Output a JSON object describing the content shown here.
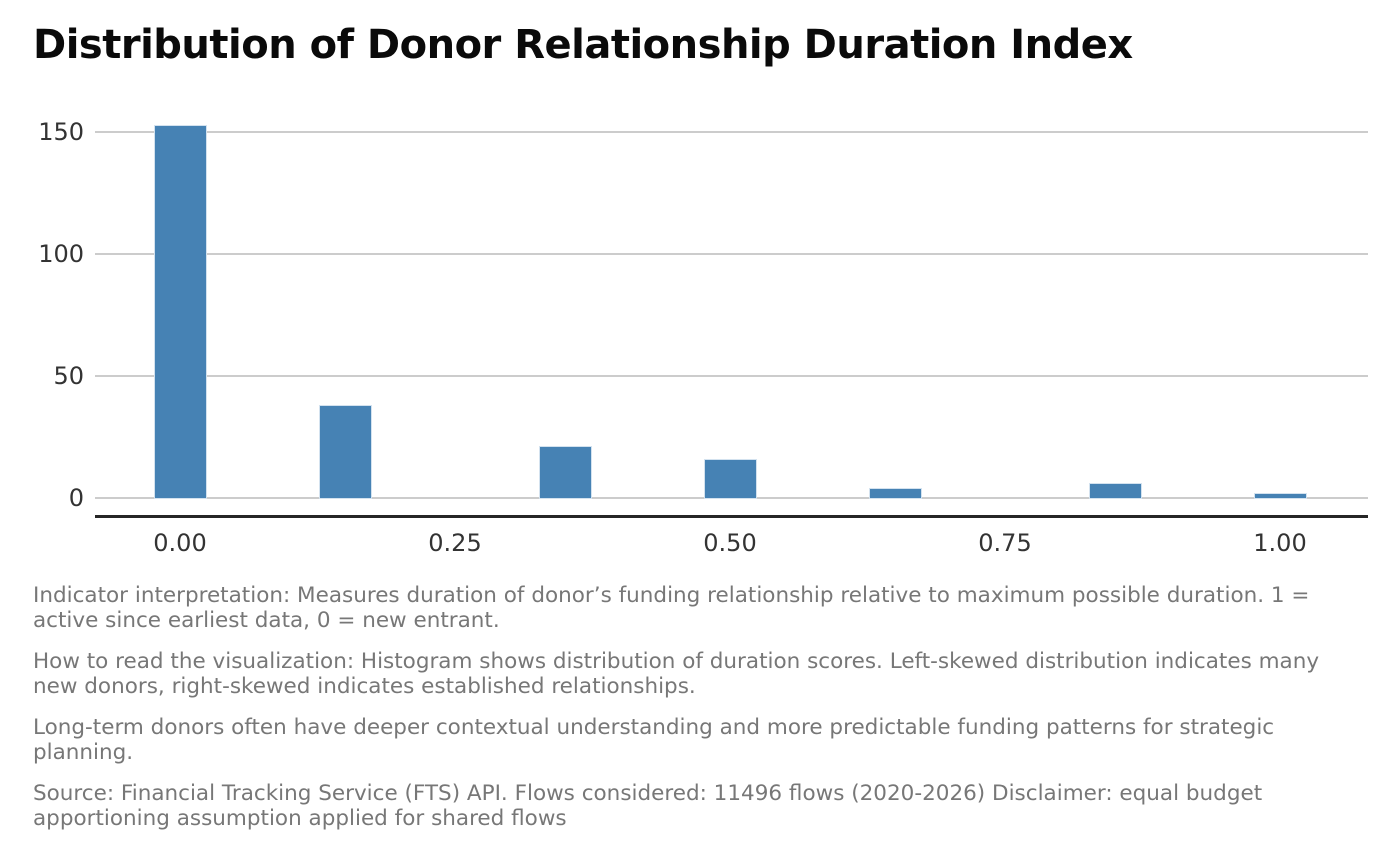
{
  "title": "Distribution of Donor Relationship Duration Index",
  "chart_data": {
    "type": "bar",
    "subtype": "histogram",
    "title": "Distribution of Donor Relationship Duration Index",
    "x": [
      0.0,
      0.15,
      0.35,
      0.5,
      0.65,
      0.85,
      1.0
    ],
    "values": [
      153,
      38,
      21,
      16,
      4,
      6,
      2
    ],
    "bin_width": 0.048,
    "xlabel": "",
    "ylabel": "",
    "x_ticks": [
      {
        "label": "0.00",
        "value": 0.0
      },
      {
        "label": "0.25",
        "value": 0.25
      },
      {
        "label": "0.50",
        "value": 0.5
      },
      {
        "label": "0.75",
        "value": 0.75
      },
      {
        "label": "1.00",
        "value": 1.0
      }
    ],
    "y_ticks": [
      {
        "label": "0",
        "value": 0
      },
      {
        "label": "50",
        "value": 50
      },
      {
        "label": "100",
        "value": 100
      },
      {
        "label": "150",
        "value": 150
      }
    ],
    "xlim": [
      -0.077,
      1.08
    ],
    "ylim": [
      0,
      160
    ],
    "grid": "horizontal-only",
    "legend_position": "none",
    "bar_color": "#4682B4"
  },
  "colors": {
    "bar": "#4682B4",
    "grid": "#cccccc",
    "axis": "#262626",
    "tick_label": "#333333",
    "caption": "#777777",
    "title": "#0a0a0a"
  },
  "captions": [
    "Indicator interpretation: Measures duration of donor’s funding relationship relative to maximum possible duration. 1 = active since earliest data, 0 = new entrant.",
    "How to read the visualization: Histogram shows distribution of duration scores. Left-skewed distribution indicates many new donors, right-skewed indicates established relationships.",
    "Long-term donors often have deeper contextual understanding and more predictable funding patterns for strategic planning.",
    "Source: Financial Tracking Service (FTS) API. Flows considered: 11496 flows (2020-2026) Disclaimer: equal budget apportioning assumption applied for shared flows"
  ]
}
